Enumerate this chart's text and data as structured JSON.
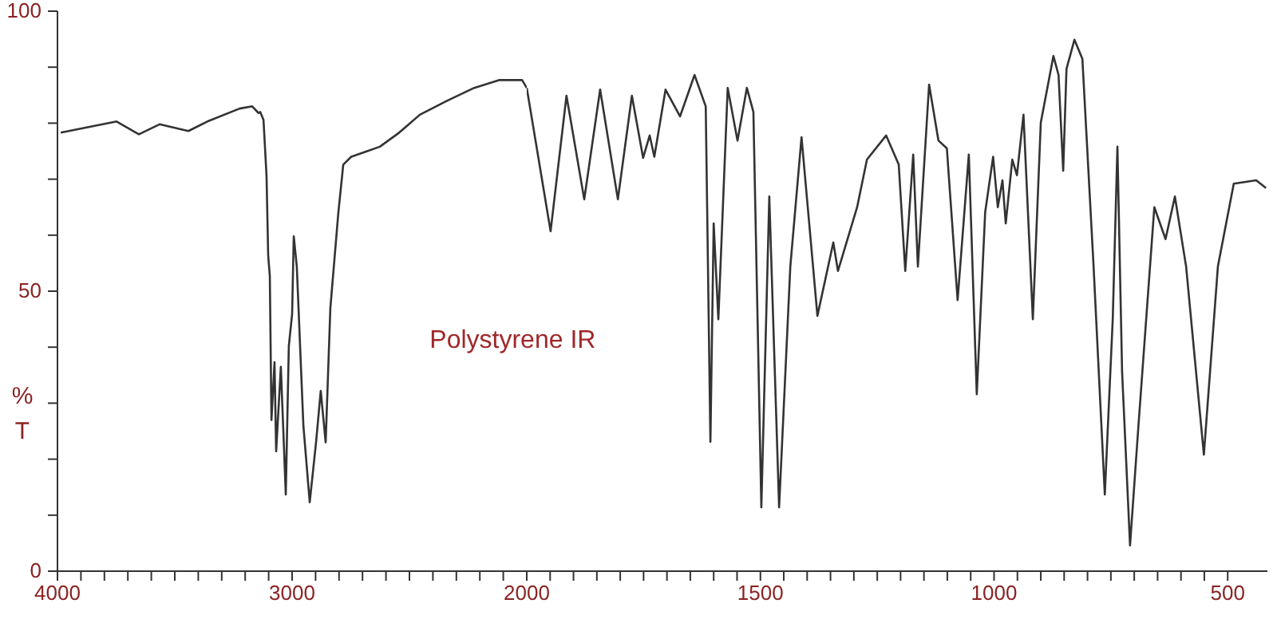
{
  "chart_data": [
    {
      "type": "line",
      "title": "Polystyrene IR",
      "ylabel": "% T",
      "color": "#333333",
      "x": [
        3986,
        3748,
        3653,
        3565,
        3442,
        3361,
        3224,
        3170,
        3143,
        3136,
        3122,
        3109,
        3102,
        3095,
        3088,
        3075,
        3068,
        3048,
        3027,
        3014,
        3000,
        2993,
        2980,
        2952,
        2925,
        2898,
        2878,
        2857,
        2837,
        2803,
        2782,
        2748,
        2680,
        2626,
        2544,
        2456,
        2340,
        2224,
        2116,
        2020,
        2000
      ],
      "values": [
        78.3,
        80.3,
        78,
        79.8,
        78.6,
        80.3,
        82.6,
        83,
        81.8,
        82,
        80.6,
        70.6,
        56.4,
        52.7,
        27,
        37.3,
        21.4,
        36.5,
        13.7,
        40.2,
        45.9,
        59.8,
        54.4,
        26,
        12.3,
        23,
        32.2,
        23,
        47,
        64,
        72.6,
        74,
        75,
        75.8,
        78.3,
        81.5,
        84,
        86.3,
        87.7,
        87.7,
        86.3
      ],
      "xlim": [
        4000,
        2000
      ],
      "ylim": [
        0,
        100
      ],
      "xticks": [
        4000,
        {
          "value": 3900,
          "label": null
        },
        {
          "value": 3800,
          "label": null
        },
        {
          "value": 3700,
          "label": null
        },
        {
          "value": 3600,
          "label": null
        },
        {
          "value": 3500,
          "label": null
        },
        {
          "value": 3400,
          "label": null
        },
        {
          "value": 3300,
          "label": null
        },
        {
          "value": 3200,
          "label": null
        },
        {
          "value": 3100,
          "label": null
        },
        3000,
        {
          "value": 2900,
          "label": null
        },
        {
          "value": 2800,
          "label": null
        },
        {
          "value": 2700,
          "label": null
        },
        {
          "value": 2600,
          "label": null
        },
        {
          "value": 2500,
          "label": null
        },
        {
          "value": 2400,
          "label": null
        },
        {
          "value": 2300,
          "label": null
        },
        {
          "value": 2200,
          "label": null
        },
        {
          "value": 2100,
          "label": null
        },
        2000
      ],
      "yticks": [
        0,
        {
          "value": 10,
          "label": null
        },
        {
          "value": 20,
          "label": null
        },
        {
          "value": 30,
          "label": null
        },
        {
          "value": 40,
          "label": null
        },
        50,
        {
          "value": 60,
          "label": null
        },
        {
          "value": 70,
          "label": null
        },
        {
          "value": 80,
          "label": null
        },
        {
          "value": 90,
          "label": null
        },
        100
      ]
    },
    {
      "type": "line",
      "color": "#333333",
      "tick_labels": "x",
      "x": [
        2000,
        1949,
        1915,
        1877,
        1843,
        1805,
        1775,
        1751,
        1737,
        1727,
        1703,
        1672,
        1641,
        1617,
        1607,
        1600,
        1590,
        1570,
        1549,
        1529,
        1515,
        1498,
        1481,
        1460,
        1436,
        1412,
        1378,
        1344,
        1334,
        1324,
        1293,
        1272,
        1231,
        1204,
        1190,
        1173,
        1163,
        1139,
        1119,
        1101,
        1078,
        1054,
        1037,
        1019,
        1002,
        992,
        982,
        975,
        961,
        951,
        937,
        917,
        900,
        873,
        862,
        852,
        845,
        828,
        811,
        787,
        763,
        746,
        736,
        726,
        709,
        691,
        657,
        633,
        613,
        589,
        551,
        521,
        487,
        439,
        418
      ],
      "values": [
        86.3,
        60.7,
        84.9,
        66.4,
        86,
        66.4,
        84.9,
        73.8,
        77.8,
        74,
        86,
        81.2,
        88.6,
        83,
        23.1,
        62.1,
        45,
        86.3,
        76.9,
        86.3,
        82,
        11.4,
        66.9,
        11.4,
        54.4,
        77.5,
        45.6,
        58.7,
        53.6,
        56.4,
        65,
        73.5,
        77.8,
        72.6,
        53.6,
        74.4,
        54.4,
        86.9,
        76.9,
        75.5,
        48.4,
        74.4,
        31.6,
        64.1,
        74,
        65,
        69.8,
        62.1,
        73.5,
        70.7,
        81.5,
        45,
        80.1,
        92,
        88.6,
        71.5,
        89.7,
        94.9,
        91.5,
        54.4,
        13.7,
        45,
        75.8,
        35.6,
        4.6,
        26,
        65,
        59.3,
        66.9,
        54.4,
        20.8,
        54.4,
        69.2,
        69.8,
        68.4
      ],
      "xlim": [
        2000,
        415
      ],
      "ylim": [
        0,
        100
      ],
      "xticks": [
        {
          "value": 1950,
          "label": null
        },
        {
          "value": 1900,
          "label": null
        },
        {
          "value": 1850,
          "label": null
        },
        {
          "value": 1800,
          "label": null
        },
        {
          "value": 1750,
          "label": null
        },
        {
          "value": 1700,
          "label": null
        },
        {
          "value": 1650,
          "label": null
        },
        {
          "value": 1600,
          "label": null
        },
        {
          "value": 1550,
          "label": null
        },
        1500,
        {
          "value": 1450,
          "label": null
        },
        {
          "value": 1400,
          "label": null
        },
        {
          "value": 1350,
          "label": null
        },
        {
          "value": 1300,
          "label": null
        },
        {
          "value": 1250,
          "label": null
        },
        {
          "value": 1200,
          "label": null
        },
        {
          "value": 1150,
          "label": null
        },
        {
          "value": 1100,
          "label": null
        },
        {
          "value": 1050,
          "label": null
        },
        1000,
        {
          "value": 950,
          "label": null
        },
        {
          "value": 900,
          "label": null
        },
        {
          "value": 850,
          "label": null
        },
        {
          "value": 800,
          "label": null
        },
        {
          "value": 750,
          "label": null
        },
        {
          "value": 700,
          "label": null
        },
        {
          "value": 650,
          "label": null
        },
        {
          "value": 600,
          "label": null
        },
        {
          "value": 550,
          "label": null
        },
        500
      ]
    }
  ]
}
